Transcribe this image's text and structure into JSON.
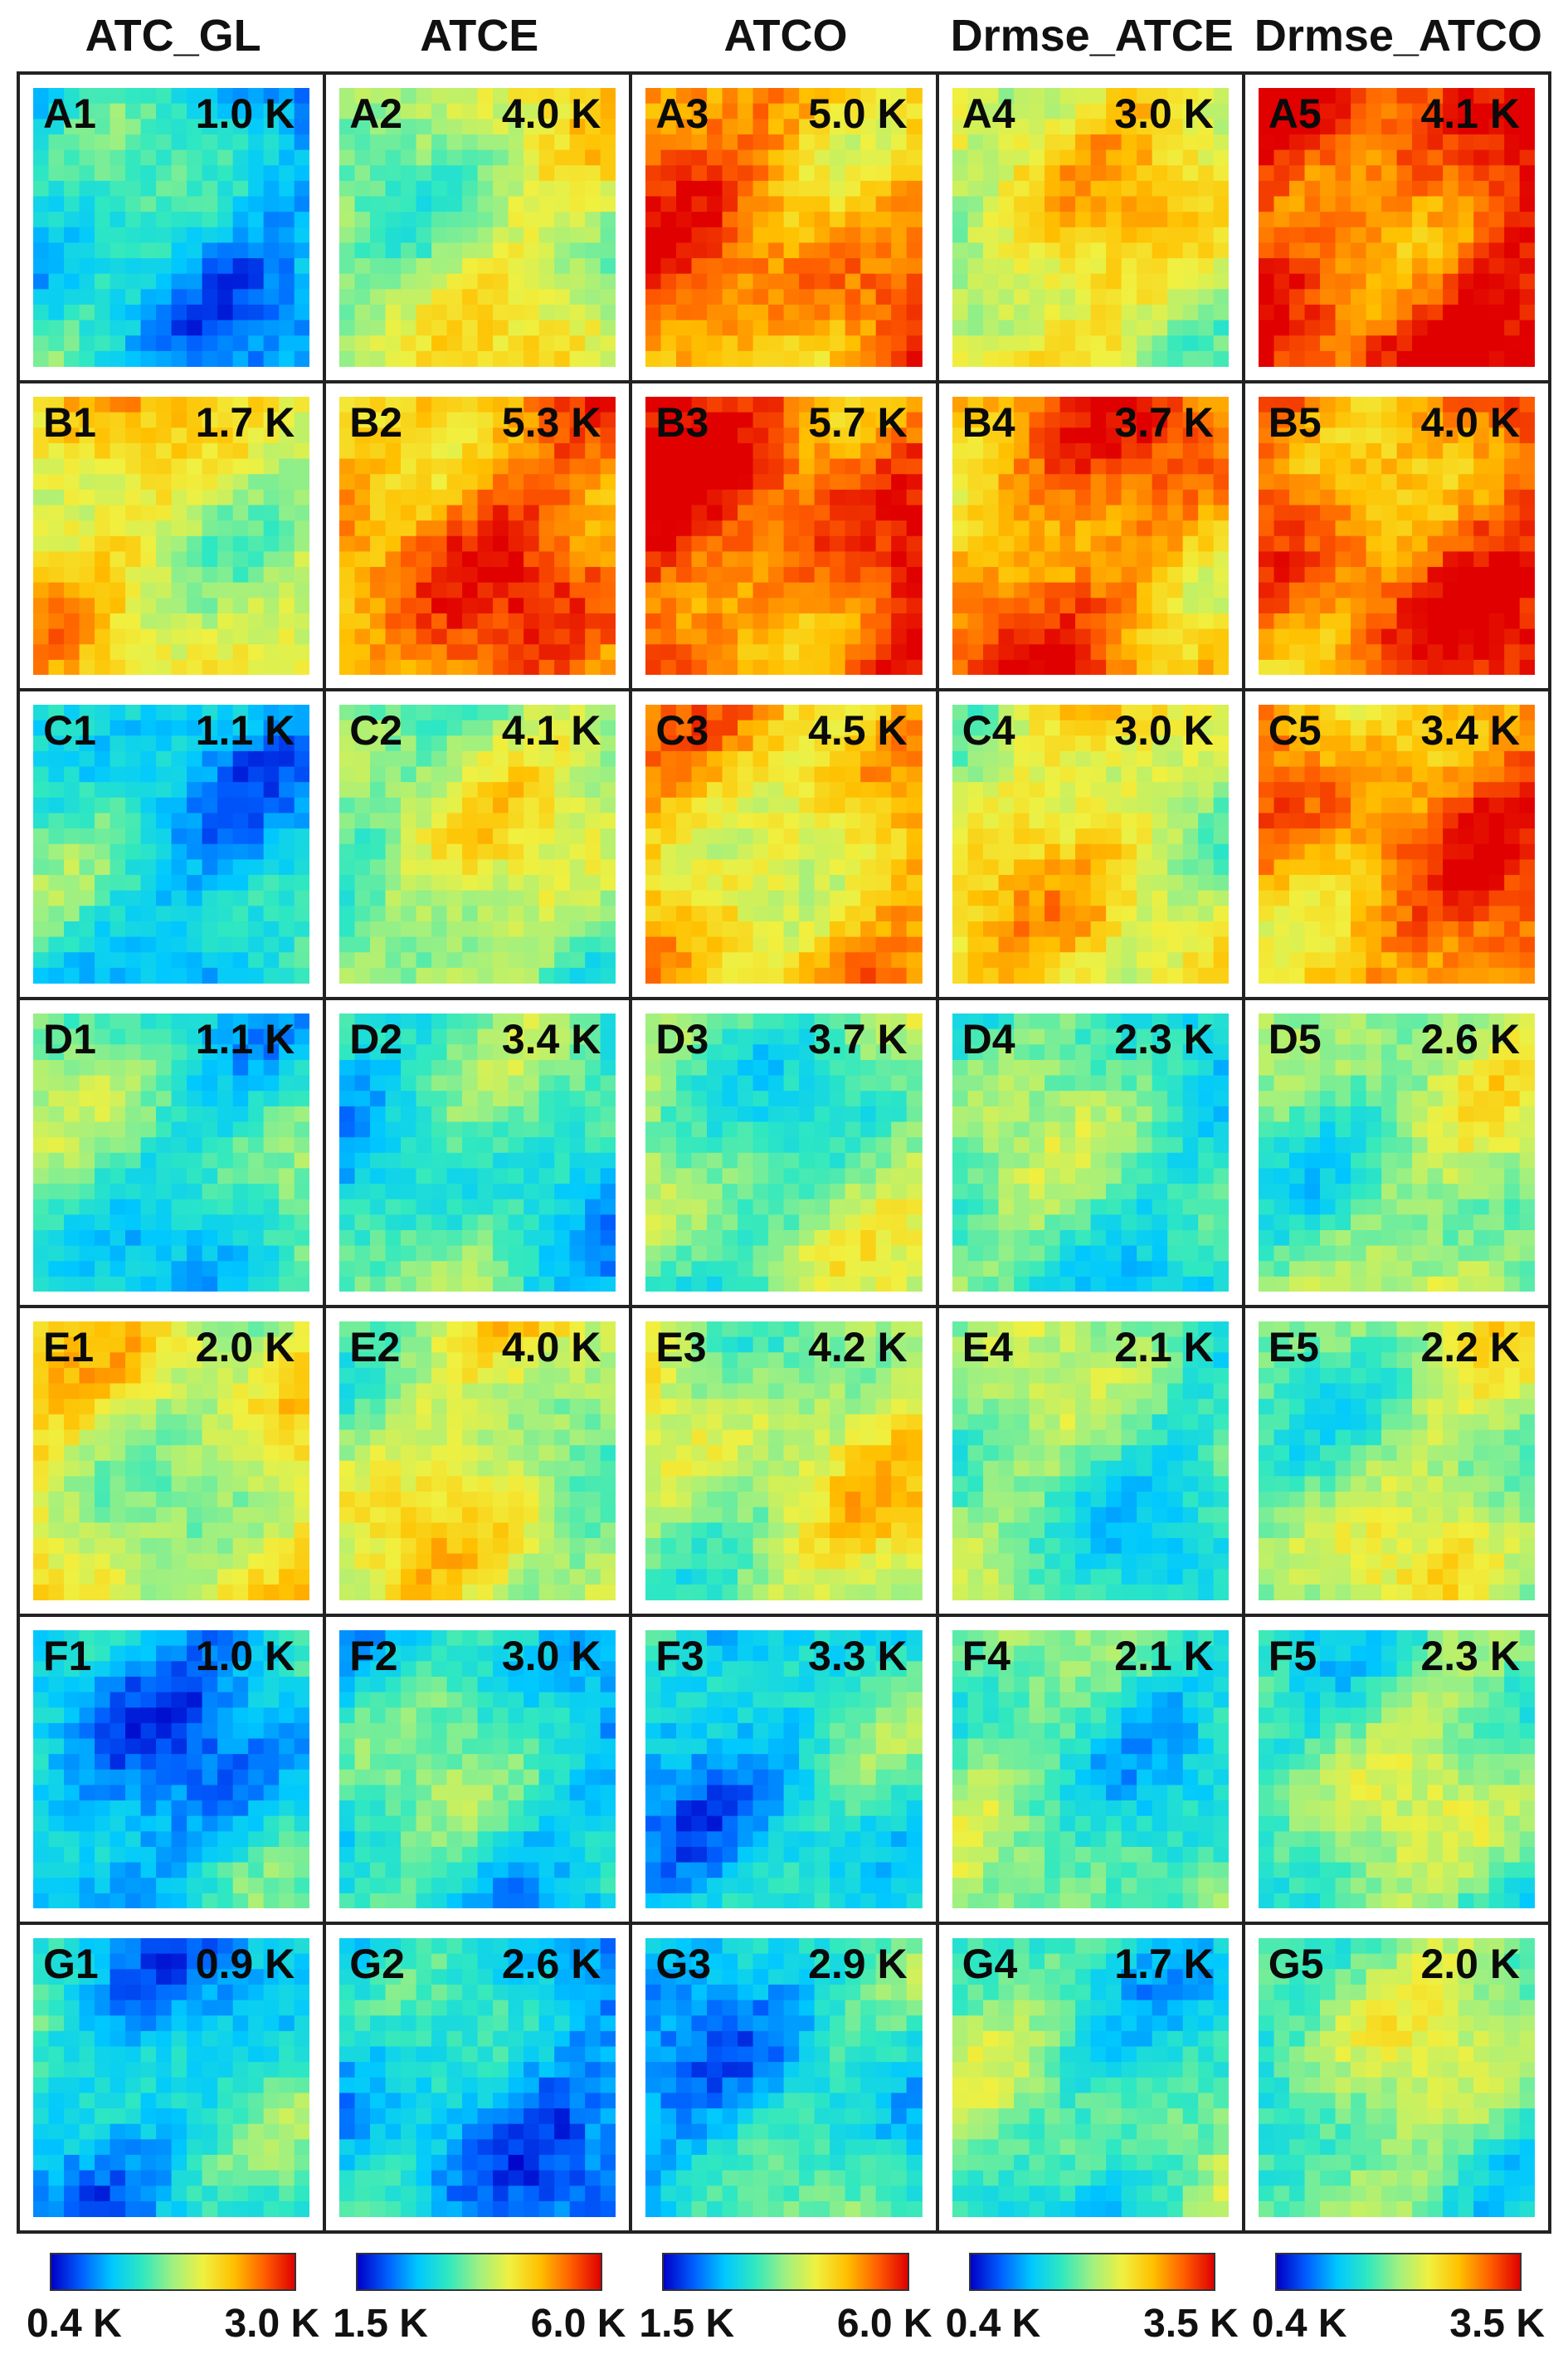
{
  "columns": [
    "ATC_GL",
    "ATCE",
    "ATCO",
    "Drmse_ATCE",
    "Drmse_ATCO"
  ],
  "colormap": [
    "#0000c8",
    "#0060ff",
    "#00c8ff",
    "#30e8c0",
    "#a0f080",
    "#f0f040",
    "#ffc000",
    "#ff6000",
    "#e00000"
  ],
  "rows": [
    {
      "label": "A",
      "panels": [
        {
          "id": "A1",
          "value": "1.0 K",
          "level": 0.28
        },
        {
          "id": "A2",
          "value": "4.0 K",
          "level": 0.55
        },
        {
          "id": "A3",
          "value": "5.0 K",
          "level": 0.82
        },
        {
          "id": "A4",
          "value": "3.0 K",
          "level": 0.62
        },
        {
          "id": "A5",
          "value": "4.1 K",
          "level": 0.92
        }
      ]
    },
    {
      "label": "B",
      "panels": [
        {
          "id": "B1",
          "value": "1.7 K",
          "level": 0.62
        },
        {
          "id": "B2",
          "value": "5.3 K",
          "level": 0.82
        },
        {
          "id": "B3",
          "value": "5.7 K",
          "level": 0.9
        },
        {
          "id": "B4",
          "value": "3.7 K",
          "level": 0.8
        },
        {
          "id": "B5",
          "value": "4.0 K",
          "level": 0.86
        }
      ]
    },
    {
      "label": "C",
      "panels": [
        {
          "id": "C1",
          "value": "1.1 K",
          "level": 0.3
        },
        {
          "id": "C2",
          "value": "4.1 K",
          "level": 0.52
        },
        {
          "id": "C3",
          "value": "4.5 K",
          "level": 0.72
        },
        {
          "id": "C4",
          "value": "3.0 K",
          "level": 0.62
        },
        {
          "id": "C5",
          "value": "3.4 K",
          "level": 0.82
        }
      ]
    },
    {
      "label": "D",
      "panels": [
        {
          "id": "D1",
          "value": "1.1 K",
          "level": 0.38
        },
        {
          "id": "D2",
          "value": "3.4 K",
          "level": 0.36
        },
        {
          "id": "D3",
          "value": "3.7 K",
          "level": 0.46
        },
        {
          "id": "D4",
          "value": "2.3 K",
          "level": 0.4
        },
        {
          "id": "D5",
          "value": "2.6 K",
          "level": 0.48
        }
      ]
    },
    {
      "label": "E",
      "panels": [
        {
          "id": "E1",
          "value": "2.0 K",
          "level": 0.6
        },
        {
          "id": "E2",
          "value": "4.0 K",
          "level": 0.55
        },
        {
          "id": "E3",
          "value": "4.2 K",
          "level": 0.56
        },
        {
          "id": "E4",
          "value": "2.1 K",
          "level": 0.42
        },
        {
          "id": "E5",
          "value": "2.2 K",
          "level": 0.5
        }
      ]
    },
    {
      "label": "F",
      "panels": [
        {
          "id": "F1",
          "value": "1.0 K",
          "level": 0.25
        },
        {
          "id": "F2",
          "value": "3.0 K",
          "level": 0.34
        },
        {
          "id": "F3",
          "value": "3.3 K",
          "level": 0.3
        },
        {
          "id": "F4",
          "value": "2.1 K",
          "level": 0.4
        },
        {
          "id": "F5",
          "value": "2.3 K",
          "level": 0.44
        }
      ]
    },
    {
      "label": "G",
      "panels": [
        {
          "id": "G1",
          "value": "0.9 K",
          "level": 0.3
        },
        {
          "id": "G2",
          "value": "2.6 K",
          "level": 0.25
        },
        {
          "id": "G3",
          "value": "2.9 K",
          "level": 0.3
        },
        {
          "id": "G4",
          "value": "1.7 K",
          "level": 0.4
        },
        {
          "id": "G5",
          "value": "2.0 K",
          "level": 0.46
        }
      ]
    }
  ],
  "colorbars": [
    {
      "min": "0.4 K",
      "max": "3.0 K"
    },
    {
      "min": "1.5 K",
      "max": "6.0 K"
    },
    {
      "min": "1.5 K",
      "max": "6.0 K"
    },
    {
      "min": "0.4 K",
      "max": "3.5 K"
    },
    {
      "min": "0.4 K",
      "max": "3.5 K"
    }
  ]
}
